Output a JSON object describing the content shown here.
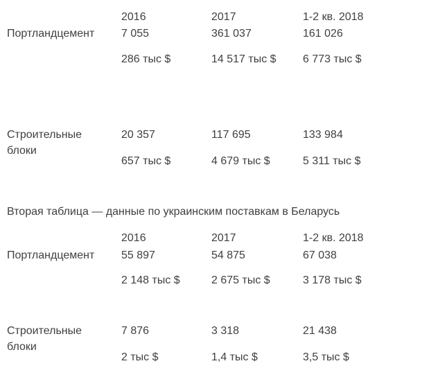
{
  "page": {
    "background_color": "#ffffff",
    "text_color": "#3f3f3f"
  },
  "table1": {
    "headers": {
      "col1": "2016",
      "col2": "2017",
      "col3": "1-2 кв. 2018"
    },
    "rows": [
      {
        "label": "Портландцемент",
        "quantities": {
          "col1": "7 055",
          "col2": "361 037",
          "col3": "161 026"
        },
        "values": {
          "col1": "286 тыс $",
          "col2": "14 517 тыс $",
          "col3": "6 773 тыс $"
        }
      },
      {
        "label": "Строительные блоки",
        "quantities": {
          "col1": "20 357",
          "col2": "117 695",
          "col3": "133 984"
        },
        "values": {
          "col1": "657 тыс $",
          "col2": "4 679 тыс $",
          "col3": "5 311 тыс $"
        }
      }
    ]
  },
  "caption": "Вторая таблица — данные по украинским поставкам в Беларусь",
  "table2": {
    "headers": {
      "col1": "2016",
      "col2": "2017",
      "col3": "1-2 кв. 2018"
    },
    "rows": [
      {
        "label": "Портландцемент",
        "quantities": {
          "col1": "55 897",
          "col2": "54 875",
          "col3": "67 038"
        },
        "values": {
          "col1": "2 148 тыс $",
          "col2": "2 675 тыс $",
          "col3": "3 178 тыс $"
        }
      },
      {
        "label": "Строительные блоки",
        "quantities": {
          "col1": "7 876",
          "col2": "3 318",
          "col3": "21 438"
        },
        "values": {
          "col1": "2 тыс $",
          "col2": "1,4 тыс $",
          "col3": "3,5 тыс $"
        }
      }
    ]
  }
}
